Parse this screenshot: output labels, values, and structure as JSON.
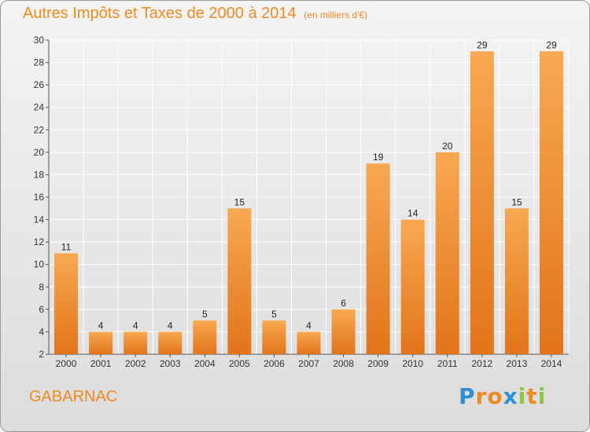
{
  "chart_data": {
    "type": "bar",
    "title": "Autres Impôts et Taxes de 2000 à 2014",
    "subtitle": "(en milliers d'€)",
    "categories": [
      "2000",
      "2001",
      "2002",
      "2003",
      "2004",
      "2005",
      "2006",
      "2007",
      "2008",
      "2009",
      "2010",
      "2011",
      "2012",
      "2013",
      "2014"
    ],
    "values": [
      11,
      4,
      4,
      4,
      5,
      15,
      5,
      4,
      6,
      19,
      14,
      20,
      29,
      15,
      29
    ],
    "ylim": [
      2,
      30
    ],
    "yticks": [
      2,
      4,
      6,
      8,
      10,
      12,
      14,
      16,
      18,
      20,
      22,
      24,
      26,
      28,
      30
    ],
    "grid": true,
    "bar_color": "#f39b3f",
    "label_color": "#222222"
  },
  "town": "GABARNAC",
  "brand": {
    "letters": [
      "P",
      "r",
      "o",
      "x",
      "i",
      "t",
      "i"
    ],
    "colors": [
      "#2d8fd5",
      "#f08a1e",
      "#f08a1e",
      "#2d8fd5",
      "#8dc63f",
      "#f08a1e",
      "#8dc63f"
    ]
  }
}
